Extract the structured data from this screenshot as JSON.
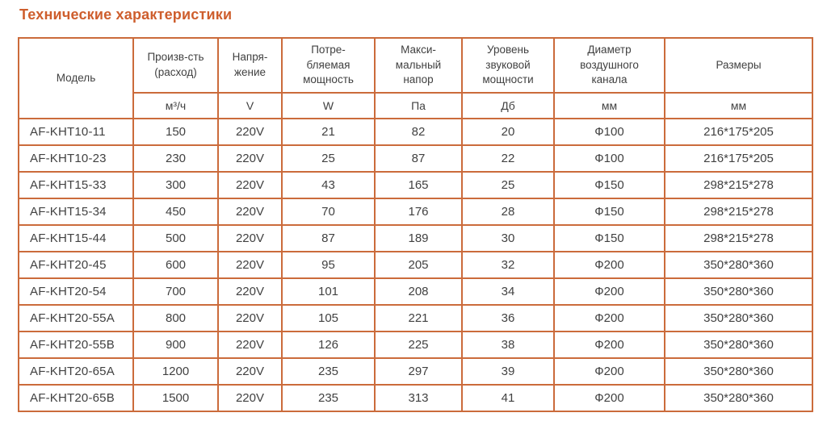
{
  "title": "Технические характеристики",
  "colors": {
    "title": "#ce5e2d",
    "table_border": "#cb6b3b",
    "cell_text": "#414141",
    "background": "#ffffff"
  },
  "table": {
    "columns": [
      {
        "label": "Модель",
        "unit": ""
      },
      {
        "label": "Произв-сть\n(расход)",
        "unit": "м³/ч"
      },
      {
        "label": "Напря-\nжение",
        "unit": "V"
      },
      {
        "label": "Потре-\nбляемая\nмощность",
        "unit": "W"
      },
      {
        "label": "Макси-\nмальный\nнапор",
        "unit": "Па"
      },
      {
        "label": "Уровень\nзвуковой\nмощности",
        "unit": "Дб"
      },
      {
        "label": "Диаметр\nвоздушного\nканала",
        "unit": "мм"
      },
      {
        "label": "Размеры",
        "unit": "мм"
      }
    ],
    "rows": [
      [
        "AF-KHT10-11",
        "150",
        "220V",
        "21",
        "82",
        "20",
        "Ф100",
        "216*175*205"
      ],
      [
        "AF-KHT10-23",
        "230",
        "220V",
        "25",
        "87",
        "22",
        "Ф100",
        "216*175*205"
      ],
      [
        "AF-KHT15-33",
        "300",
        "220V",
        "43",
        "165",
        "25",
        "Ф150",
        "298*215*278"
      ],
      [
        "AF-KHT15-34",
        "450",
        "220V",
        "70",
        "176",
        "28",
        "Ф150",
        "298*215*278"
      ],
      [
        "AF-KHT15-44",
        "500",
        "220V",
        "87",
        "189",
        "30",
        "Ф150",
        "298*215*278"
      ],
      [
        "AF-KHT20-45",
        "600",
        "220V",
        "95",
        "205",
        "32",
        "Ф200",
        "350*280*360"
      ],
      [
        "AF-KHT20-54",
        "700",
        "220V",
        "101",
        "208",
        "34",
        "Ф200",
        "350*280*360"
      ],
      [
        "AF-KHT20-55A",
        "800",
        "220V",
        "105",
        "221",
        "36",
        "Ф200",
        "350*280*360"
      ],
      [
        "AF-KHT20-55B",
        "900",
        "220V",
        "126",
        "225",
        "38",
        "Ф200",
        "350*280*360"
      ],
      [
        "AF-KHT20-65A",
        "1200",
        "220V",
        "235",
        "297",
        "39",
        "Ф200",
        "350*280*360"
      ],
      [
        "AF-KHT20-65B",
        "1500",
        "220V",
        "235",
        "313",
        "41",
        "Ф200",
        "350*280*360"
      ]
    ]
  }
}
